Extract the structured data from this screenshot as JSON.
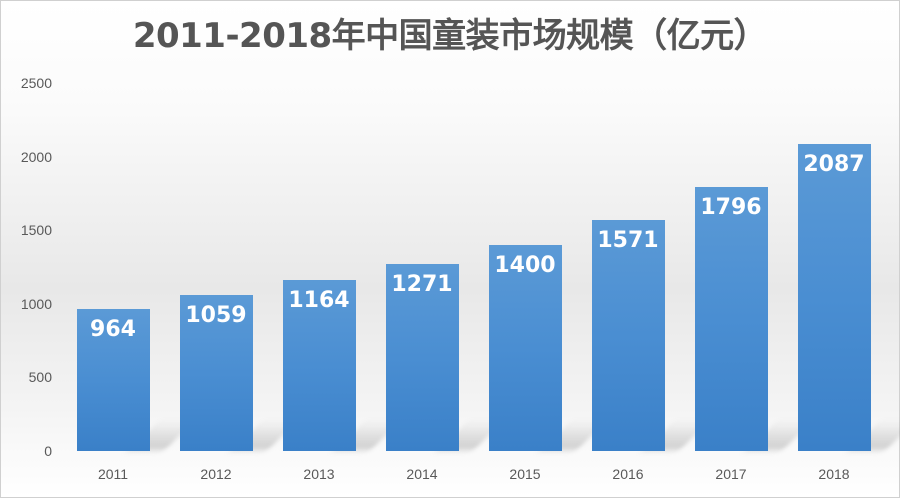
{
  "chart_data": {
    "type": "bar",
    "title": "2011-2018年中国童装市场规模（亿元）",
    "xlabel": "",
    "ylabel": "",
    "categories": [
      "2011",
      "2012",
      "2013",
      "2014",
      "2015",
      "2016",
      "2017",
      "2018"
    ],
    "values": [
      964,
      1059,
      1164,
      1271,
      1400,
      1571,
      1796,
      2087
    ],
    "data_labels": [
      "964",
      "1059",
      "1164",
      "1271",
      "1400",
      "1571",
      "1796",
      "2087"
    ],
    "ylim": [
      0,
      2500
    ],
    "yticks": [
      "0",
      "500",
      "1000",
      "1500",
      "2000",
      "2500"
    ],
    "grid": false,
    "legend": null,
    "bar_color": "#4a8ed2",
    "label_color": "#ffffff"
  }
}
